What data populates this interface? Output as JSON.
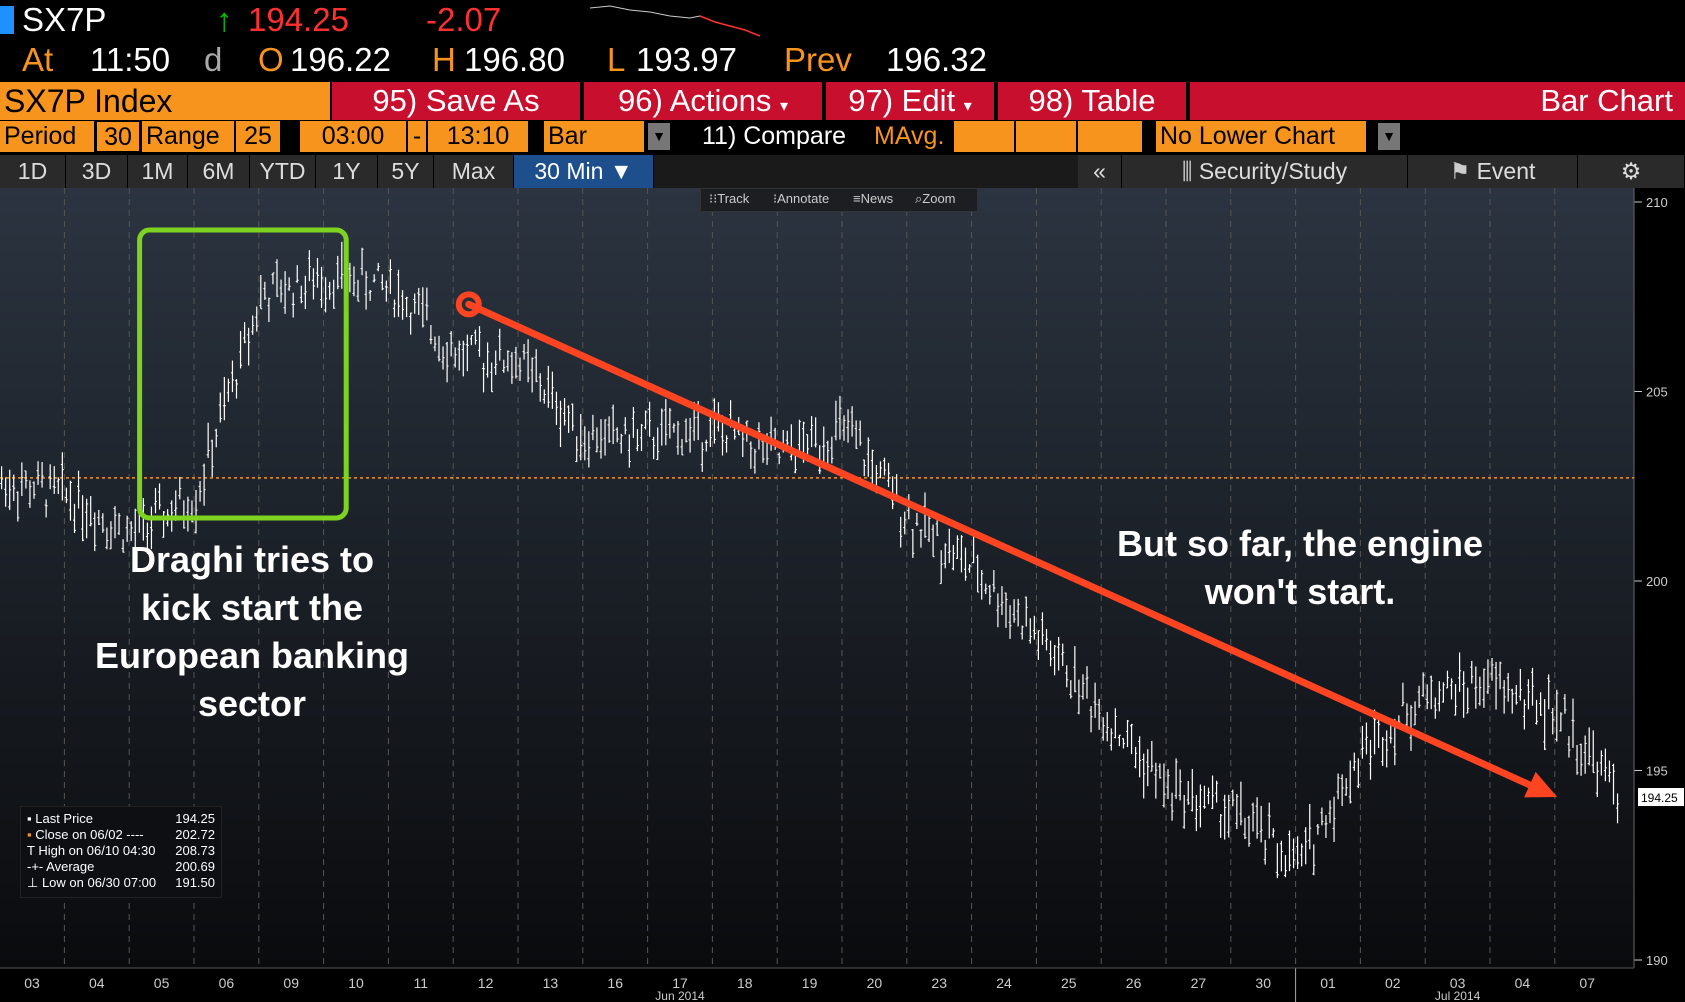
{
  "header": {
    "ticker": "SX7P",
    "arrow": "↑",
    "last": "194.25",
    "change": "-2.07",
    "at_label": "At",
    "time": "11:50",
    "d_label": "d",
    "o_label": "O",
    "open": "196.22",
    "h_label": "H",
    "high": "196.80",
    "l_label": "L",
    "low": "193.97",
    "prev_label": "Prev",
    "prev": "196.32"
  },
  "menubar": {
    "security": "SX7P Index",
    "save_as": "95) Save As",
    "actions": "96) Actions",
    "edit": "97) Edit",
    "table": "98) Table",
    "chart_type": "Bar Chart"
  },
  "params": {
    "period_label": "Period",
    "period": "30",
    "range_label": "Range",
    "range": "25",
    "start": "03:00",
    "dash": "-",
    "end": "13:10",
    "style": "Bar",
    "compare": "11) Compare",
    "mavg": "MAvg.",
    "lower": "No Lower Chart"
  },
  "tabs": {
    "items": [
      "1D",
      "3D",
      "1M",
      "6M",
      "YTD",
      "1Y",
      "5Y",
      "Max",
      "30 Min ▼"
    ],
    "collapse": "«",
    "security_study": "Security/Study",
    "event": "Event",
    "gear": "⚙"
  },
  "toolbar": {
    "track": "Track",
    "annotate": "Annotate",
    "news": "News",
    "zoom": "Zoom"
  },
  "annotations": {
    "left": [
      "Draghi tries to",
      "kick start the",
      "European banking",
      "sector"
    ],
    "right": [
      "But so far, the engine",
      "won't start."
    ]
  },
  "legend": {
    "items": [
      {
        "label": "Last Price",
        "value": "194.25"
      },
      {
        "label": "Close on 06/02 ----",
        "value": "202.72"
      },
      {
        "label": "High on 06/10 04:30",
        "value": "208.73"
      },
      {
        "label": "Average",
        "value": "200.69"
      },
      {
        "label": "Low on 06/30 07:00",
        "value": "191.50"
      }
    ]
  },
  "colors": {
    "orange": "#f7941d",
    "red": "#c8102e",
    "up_green": "#00c000",
    "down_red": "#ff3030",
    "trend": "#ff4422",
    "highlight_box": "#7ed321"
  },
  "chart_data": {
    "type": "bar",
    "x": [
      "03",
      "04",
      "05",
      "06",
      "09",
      "10",
      "11",
      "12",
      "13",
      "16",
      "17",
      "18",
      "19",
      "20",
      "23",
      "24",
      "25",
      "26",
      "27",
      "30",
      "01",
      "02",
      "03",
      "04",
      "07"
    ],
    "months": [
      {
        "label": "Jun 2014",
        "at": "17"
      },
      {
        "label": "Jul 2014",
        "at": "03"
      }
    ],
    "y_ticks": [
      "210",
      "205",
      "200",
      "195",
      "190"
    ],
    "ylim": [
      190,
      210
    ],
    "last_price_tag": "194.25",
    "reference_line": 202.72,
    "series": [
      {
        "values": [
          202.3,
          201.2,
          202.2,
          207.5,
          208.0,
          207.8,
          206.0,
          205.8,
          203.8,
          203.8,
          204.0,
          203.3,
          204.0,
          201.7,
          200.3,
          198.5,
          196.5,
          194.5,
          193.9,
          192.5,
          195.5,
          197.0,
          197.3,
          196.5,
          194.3
        ]
      }
    ],
    "trend": {
      "start": {
        "x": "11",
        "y": 207.3
      },
      "end": {
        "x": "07",
        "y": 194.3
      }
    },
    "highlight": {
      "from": "05",
      "to": "09"
    }
  }
}
